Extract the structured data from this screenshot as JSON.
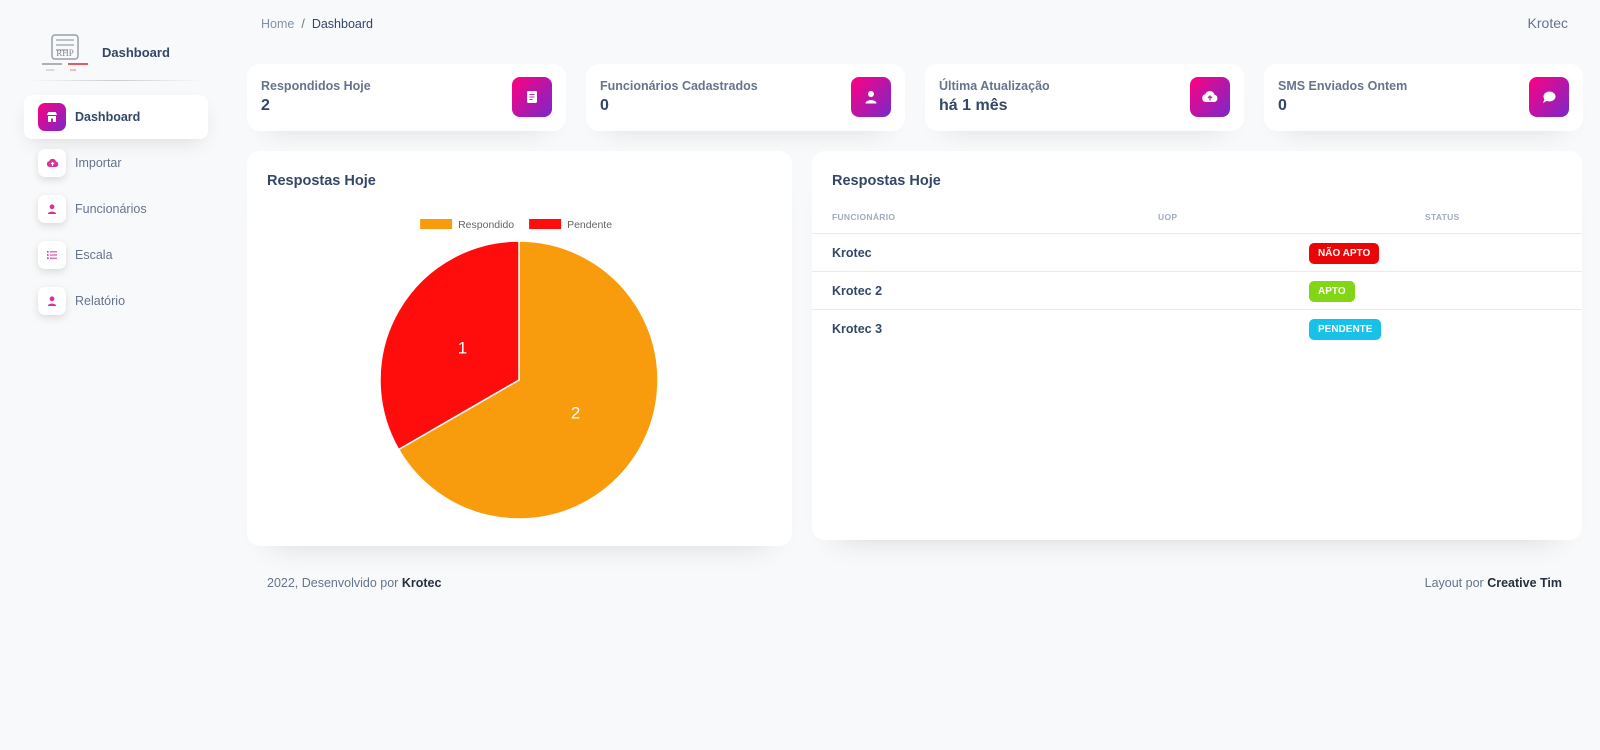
{
  "breadcrumb": {
    "home": "Home",
    "separator": "/",
    "current": "Dashboard"
  },
  "user": {
    "name": "Krotec"
  },
  "sidebar": {
    "brand": "Dashboard",
    "items": [
      {
        "label": "Dashboard",
        "icon": "shop-icon",
        "active": true
      },
      {
        "label": "Importar",
        "icon": "cloud-upload-icon",
        "active": false
      },
      {
        "label": "Funcionários",
        "icon": "user-icon",
        "active": false
      },
      {
        "label": "Escala",
        "icon": "list-icon",
        "active": false
      },
      {
        "label": "Relatório",
        "icon": "user-icon",
        "active": false
      }
    ]
  },
  "stats": [
    {
      "label": "Respondidos Hoje",
      "value": "2",
      "icon": "document-icon"
    },
    {
      "label": "Funcionários Cadastrados",
      "value": "0",
      "icon": "user-icon"
    },
    {
      "label": "Última Atualização",
      "value": "há 1 mês",
      "icon": "cloud-upload-icon"
    },
    {
      "label": "SMS Enviados Ontem",
      "value": "0",
      "icon": "chat-icon"
    }
  ],
  "chart_panel": {
    "title": "Respostas Hoje"
  },
  "chart_data": {
    "type": "pie",
    "categories": [
      "Respondido",
      "Pendente"
    ],
    "values": [
      2,
      1
    ],
    "colors": [
      "#f89c0e",
      "#ff0d0d"
    ],
    "legend": "top",
    "data_labels": true
  },
  "table_panel": {
    "title": "Respostas Hoje",
    "columns": [
      "Funcionário",
      "UOP",
      "Status"
    ],
    "rows": [
      {
        "name": "Krotec",
        "uop": "",
        "status": "Não Apto",
        "status_color": "#ea0606"
      },
      {
        "name": "Krotec 2",
        "uop": "",
        "status": "Apto",
        "status_color": "#82d616"
      },
      {
        "name": "Krotec 3",
        "uop": "",
        "status": "Pendente",
        "status_color": "#17c1e8"
      }
    ]
  },
  "footer": {
    "left_text": "2022, Desenvolvido por",
    "left_link": "Krotec",
    "right_text": "Layout por",
    "right_link": "Creative Tim"
  },
  "colors": {
    "accent_gradient_start": "#7928ca",
    "accent_gradient_end": "#ff0080",
    "text": "#344767",
    "muted": "#67748e"
  }
}
